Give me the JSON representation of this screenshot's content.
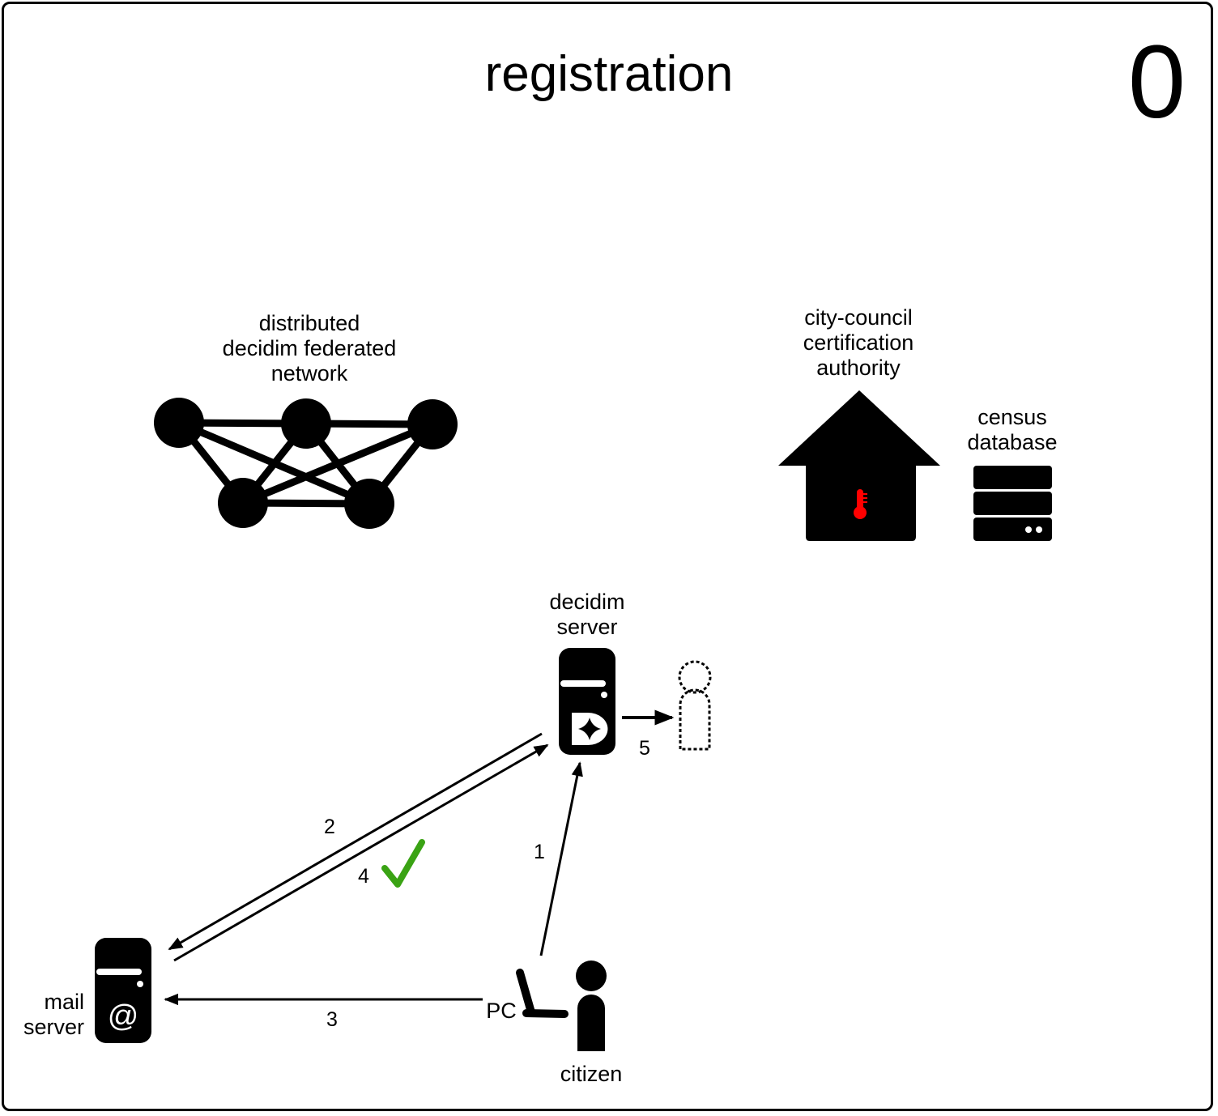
{
  "title": "registration",
  "step_number": "0",
  "network": {
    "label_lines": [
      "distributed",
      "decidim federated",
      "network"
    ]
  },
  "authority": {
    "label_lines": [
      "city-council",
      "certification",
      "authority"
    ]
  },
  "census": {
    "label_lines": [
      "census",
      "database"
    ]
  },
  "decidim_server": {
    "label_lines": [
      "decidim",
      "server"
    ]
  },
  "mail_server": {
    "label_lines": [
      "mail",
      "server"
    ],
    "icon_text": "@"
  },
  "citizen": {
    "label": "citizen",
    "device_label": "PC"
  },
  "arrows": [
    {
      "step": "1"
    },
    {
      "step": "2"
    },
    {
      "step": "3"
    },
    {
      "step": "4"
    },
    {
      "step": "5"
    }
  ],
  "colors": {
    "stroke": "#000000",
    "check": "#3aa314",
    "thermometer": "#ff0000"
  }
}
